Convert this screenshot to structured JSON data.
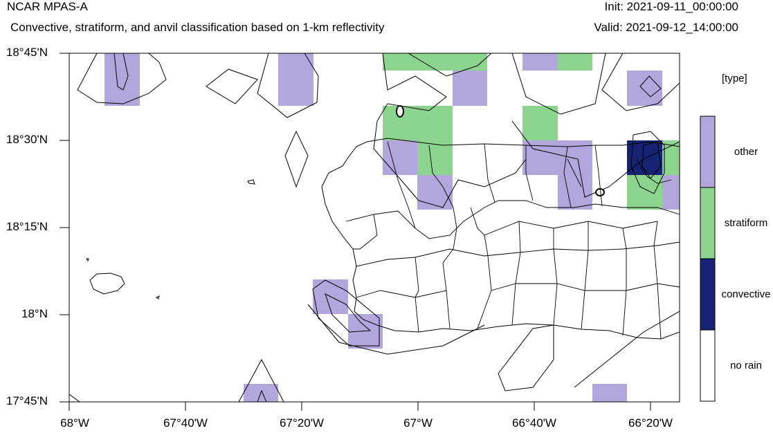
{
  "header": {
    "model": "NCAR MPAS-A",
    "subtitle": "Convective, stratiform, and anvil classification based on 1-km reflectivity",
    "init": "Init: 2021-09-11_00:00:00",
    "valid": "Valid: 2021-09-12_14:00:00"
  },
  "axes": {
    "y_ticks": [
      "18°45'N",
      "18°30'N",
      "18°15'N",
      "18°N",
      "17°45'N"
    ],
    "x_ticks": [
      "68°W",
      "67°40'W",
      "67°20'W",
      "67°W",
      "66°40'W",
      "66°20'W"
    ]
  },
  "legend": {
    "title": "[type]",
    "items": [
      {
        "label": "other",
        "color": "#b3a6dc"
      },
      {
        "label": "stratiform",
        "color": "#8bd58f"
      },
      {
        "label": "convective",
        "color": "#162372"
      },
      {
        "label": "no rain",
        "color": "#ffffff"
      }
    ]
  },
  "colors": {
    "other": "#b3a6dc",
    "stratiform": "#8bd58f",
    "convective": "#162372"
  }
}
